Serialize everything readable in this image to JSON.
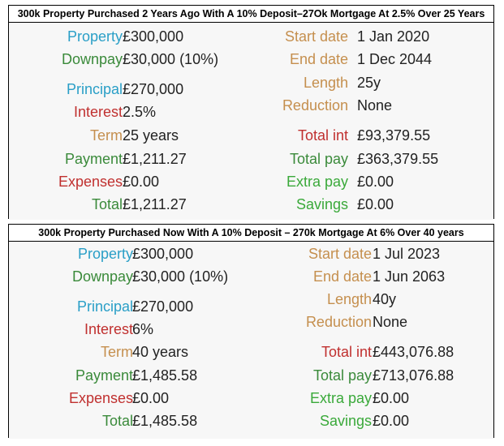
{
  "panels": [
    {
      "title": "300k Property Purchased 2 Years Ago With A 10% Deposit–27Ok Mortgage At 2.5% Over 25 Years",
      "left": [
        {
          "label": "Property",
          "value": "£300,000"
        },
        {
          "label": "Downpay",
          "value": "£30,000 (10%)"
        },
        {
          "label": "Principal",
          "value": "£270,000"
        },
        {
          "label": "Interest",
          "value": "2.5%"
        },
        {
          "label": "Term",
          "value": "25 years"
        },
        {
          "label": "Payment",
          "value": "£1,211.27"
        },
        {
          "label": "Expenses",
          "value": "£0.00"
        },
        {
          "label": "Total",
          "value": "£1,211.27"
        }
      ],
      "right": [
        {
          "label": "Start date",
          "value": "1 Jan 2020"
        },
        {
          "label": "End date",
          "value": "1 Dec 2044"
        },
        {
          "label": "Length",
          "value": "25y"
        },
        {
          "label": "Reduction",
          "value": "None"
        },
        {
          "label": "Total int",
          "value": "£93,379.55"
        },
        {
          "label": "Total pay",
          "value": "£363,379.55"
        },
        {
          "label": "Extra pay",
          "value": "£0.00"
        },
        {
          "label": "Savings",
          "value": "£0.00"
        }
      ]
    },
    {
      "title": "300k Property Purchased Now With A 10% Deposit – 270k Mortgage At 6% Over 40 years",
      "left": [
        {
          "label": "Property",
          "value": "£300,000"
        },
        {
          "label": "Downpay",
          "value": "£30,000 (10%)"
        },
        {
          "label": "Principal",
          "value": "£270,000"
        },
        {
          "label": "Interest",
          "value": "6%"
        },
        {
          "label": "Term",
          "value": "40 years"
        },
        {
          "label": "Payment",
          "value": "£1,485.58"
        },
        {
          "label": "Expenses",
          "value": "£0.00"
        },
        {
          "label": "Total",
          "value": "£1,485.58"
        }
      ],
      "right": [
        {
          "label": "Start date",
          "value": "1 Jul 2023"
        },
        {
          "label": "End date",
          "value": "1 Jun 2063"
        },
        {
          "label": "Length",
          "value": "40y"
        },
        {
          "label": "Reduction",
          "value": "None"
        },
        {
          "label": "Total int",
          "value": "£443,076.88"
        },
        {
          "label": "Total pay",
          "value": "£713,076.88"
        },
        {
          "label": "Extra pay",
          "value": "£0.00"
        },
        {
          "label": "Savings",
          "value": "£0.00"
        }
      ]
    }
  ],
  "colors": {
    "property": "#2a9fc7",
    "downpay": "#3a8a3a",
    "principal": "#2a9fc7",
    "interest": "#c0302f",
    "term": "#c58f4e",
    "payment": "#3a8a3a",
    "expenses": "#c0302f",
    "total": "#3a8a3a",
    "start_date": "#c58f4e",
    "end_date": "#c58f4e",
    "length": "#c58f4e",
    "reduction": "#c58f4e",
    "total_int": "#c0302f",
    "total_pay": "#3a8a3a",
    "extra_pay": "#3aa93a",
    "savings": "#3aa93a"
  }
}
